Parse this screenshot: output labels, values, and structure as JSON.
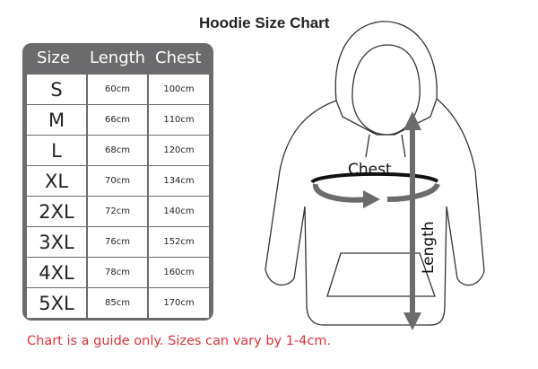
{
  "title": "Hoodie Size Chart",
  "table": {
    "headers": [
      "Size",
      "Length",
      "Chest"
    ],
    "rows": [
      [
        "S",
        "60cm",
        "100cm"
      ],
      [
        "M",
        "66cm",
        "110cm"
      ],
      [
        "L",
        "68cm",
        "120cm"
      ],
      [
        "XL",
        "70cm",
        "134cm"
      ],
      [
        "2XL",
        "72cm",
        "140cm"
      ],
      [
        "3XL",
        "76cm",
        "152cm"
      ],
      [
        "4XL",
        "78cm",
        "160cm"
      ],
      [
        "5XL",
        "85cm",
        "170cm"
      ]
    ]
  },
  "diagram": {
    "chest_label": "Chest",
    "length_label": "Length",
    "arrow_color": "#6b6b6d"
  },
  "note": "Chart is a guide only. Sizes can vary by 1-4cm.",
  "colors": {
    "table_bg": "#6b6b6d",
    "note": "#e0303a"
  }
}
